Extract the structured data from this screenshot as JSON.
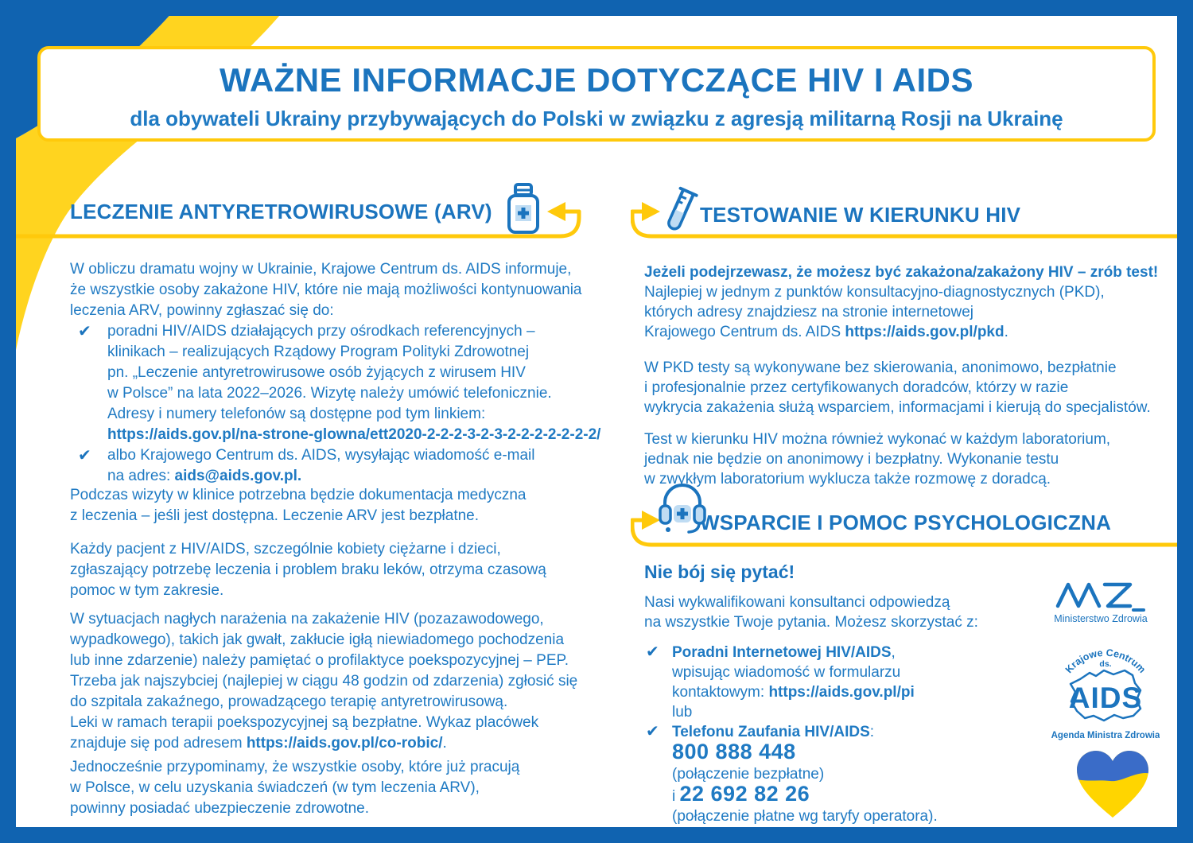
{
  "colors": {
    "frame_blue": "#1063B0",
    "accent_blue": "#1B74BE",
    "body_blue": "#1F7AC3",
    "gold_line": "#FFC90B",
    "band_yellow": "#FFD41F",
    "icon_fill": "#BFDCF3",
    "heart_blue": "#3A6CC8",
    "heart_yellow": "#FFD500"
  },
  "header": {
    "title": "WAŻNE INFORMACJE DOTYCZĄCE HIV I AIDS",
    "subtitle": "dla obywateli Ukrainy przybywających do Polski w związku z agresją militarną Rosji na Ukrainę"
  },
  "arv": {
    "heading": "LECZENIE ANTYRETROWIRUSOWE (ARV)",
    "icon": "medicine-bottle-icon",
    "intro": [
      "W obliczu dramatu wojny w Ukrainie, Krajowe Centrum ds. AIDS informuje,",
      "że wszystkie osoby zakażone HIV, które nie mają możliwości kontynuowania",
      "leczenia ARV, powinny zgłaszać się do:"
    ],
    "bullets": [
      {
        "mark": "✔",
        "lines": [
          "poradni HIV/AIDS działających przy ośrodkach referencyjnych –",
          "klinikach – realizujących Rządowy Program Polityki Zdrowotnej",
          "pn. „Leczenie antyretrowirusowe osób żyjących z wirusem HIV",
          "w Polsce” na lata 2022–2026. Wizytę należy umówić telefonicznie.",
          "Adresy i numery telefonów są dostępne pod tym linkiem:",
          [
            {
              "t": "https://aids.gov.pl/na-strone-glowna/ett2020-2-2-2-3-2-3-2-2-2-2-2-2-2/",
              "b": true,
              "link": true
            }
          ]
        ]
      },
      {
        "mark": "✔",
        "lines": [
          "albo Krajowego Centrum ds. AIDS, wysyłając wiadomość e-mail",
          [
            {
              "t": "na adres: "
            },
            {
              "t": "aids@aids.gov.pl.",
              "b": true,
              "link": true
            }
          ]
        ]
      }
    ],
    "p2": [
      "Podczas wizyty w klinice potrzebna będzie dokumentacja medyczna",
      "z leczenia – jeśli jest dostępna. Leczenie ARV jest bezpłatne."
    ],
    "p3": [
      "Każdy pacjent z HIV/AIDS, szczególnie kobiety ciężarne i dzieci,",
      "zgłaszający potrzebę leczenia i problem braku leków, otrzyma czasową",
      "pomoc w tym zakresie."
    ],
    "p4": [
      "W sytuacjach nagłych narażenia na zakażenie HIV (pozazawodowego,",
      "wypadkowego), takich jak gwałt, zakłucie igłą niewiadomego pochodzenia",
      "lub inne zdarzenie) należy pamiętać o profilaktyce poekspozycyjnej – PEP.",
      "Trzeba jak najszybciej (najlepiej w ciągu 48 godzin od zdarzenia) zgłosić się",
      "do szpitala zakaźnego, prowadzącego terapię antyretrowirusową.",
      "Leki w ramach terapii poekspozycyjnej są bezpłatne. Wykaz placówek",
      [
        {
          "t": "znajduje się pod adresem "
        },
        {
          "t": "https://aids.gov.pl/co-robic/",
          "b": true,
          "link": true
        },
        {
          "t": "."
        }
      ]
    ],
    "p5": [
      "Jednocześnie przypominamy, że wszystkie osoby, które już pracują",
      "w Polsce, w celu uzyskania świadczeń (w tym leczenia ARV),",
      "powinny posiadać ubezpieczenie zdrowotne."
    ]
  },
  "testing": {
    "heading": "TESTOWANIE W KIERUNKU HIV",
    "icon": "test-tube-icon",
    "p1": [
      [
        {
          "t": "Jeżeli podejrzewasz, że możesz być zakażona/zakażony HIV – zrób test!",
          "b": true
        }
      ],
      "Najlepiej w jednym z punktów konsultacyjno-diagnostycznych (PKD),",
      "których adresy znajdziesz na stronie internetowej",
      [
        {
          "t": "Krajowego Centrum ds. AIDS "
        },
        {
          "t": "https://aids.gov.pl/pkd",
          "b": true,
          "link": true
        },
        {
          "t": "."
        }
      ]
    ],
    "p2": [
      "W PKD testy są wykonywane bez skierowania, anonimowo, bezpłatnie",
      "i profesjonalnie przez certyfikowanych doradców, którzy w razie",
      "wykrycia zakażenia służą wsparciem, informacjami i kierują do specjalistów."
    ],
    "p3": [
      "Test w kierunku HIV można również wykonać w każdym laboratorium,",
      "jednak nie będzie on anonimowy i bezpłatny. Wykonanie testu",
      "w zwykłym laboratorium wyklucza także rozmowę z doradcą."
    ]
  },
  "support": {
    "heading": "WSPARCIE I POMOC PSYCHOLOGICZNA",
    "icon": "headset-icon",
    "lead": "Nie bój się pytać!",
    "body": [
      "Nasi wykwalifikowani konsultanci odpowiedzą",
      "na wszystkie Twoje pytania. Możesz skorzystać z:"
    ],
    "bullets": [
      {
        "mark": "✔",
        "lines": [
          [
            {
              "t": "Poradni Internetowej HIV/AIDS",
              "b": true
            },
            {
              "t": ","
            }
          ],
          "wpisując wiadomość w formularzu",
          [
            {
              "t": "kontaktowym: "
            },
            {
              "t": "https://aids.gov.pl/pi",
              "b": true,
              "link": true
            }
          ],
          "lub"
        ]
      },
      {
        "mark": "✔",
        "lines": [
          [
            {
              "t": "Telefonu Zaufania HIV/AIDS",
              "b": true
            },
            {
              "t": ":"
            }
          ],
          [
            {
              "t": "800 888 448",
              "b": true,
              "big": true,
              "link": true
            }
          ],
          "(połączenie bezpłatne)",
          [
            {
              "t": "i "
            },
            {
              "t": "22 692 82 26",
              "b": true,
              "big": true,
              "link": true
            }
          ],
          "(połączenie płatne wg taryfy operatora)."
        ]
      }
    ]
  },
  "logos": {
    "mz": {
      "label": "Ministerstwo Zdrowia"
    },
    "aids": {
      "arc": "Krajowe Centrum",
      "ds": "ds.",
      "word": "AIDS",
      "sub": "Agenda Ministra Zdrowia"
    }
  }
}
